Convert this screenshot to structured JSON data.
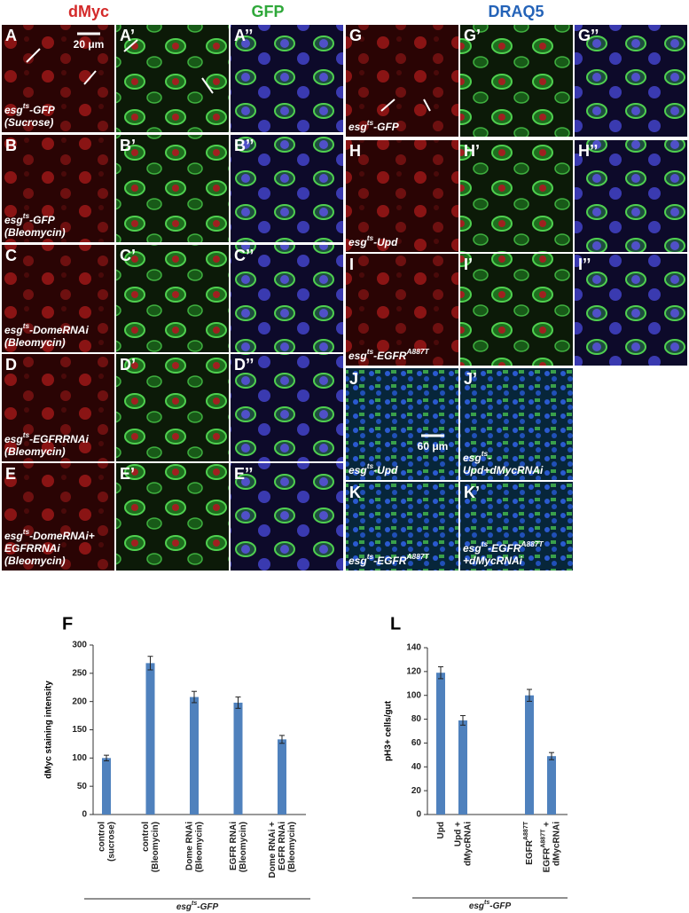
{
  "headers": [
    "dMyc",
    "GFP",
    "DRAQ5"
  ],
  "panels": [
    {
      "label": "A",
      "scale_bar": "20 μm",
      "caption": [
        [
          "esg",
          "ts",
          "-GFP"
        ],
        [
          "(Sucrose)"
        ]
      ]
    },
    {
      "label": "A’"
    },
    {
      "label": "A’’"
    },
    {
      "label": "B",
      "caption": [
        [
          "esg",
          "ts",
          "-GFP"
        ],
        [
          "(Bleomycin)"
        ]
      ]
    },
    {
      "label": "B’"
    },
    {
      "label": "B’’"
    },
    {
      "label": "C",
      "caption": [
        [
          "esg",
          "ts",
          "-DomeRNAi"
        ],
        [
          "(Bleomycin)"
        ]
      ]
    },
    {
      "label": "C’"
    },
    {
      "label": "C’’"
    },
    {
      "label": "D",
      "caption": [
        [
          "esg",
          "ts",
          "-EGFRRNAi"
        ],
        [
          "(Bleomycin)"
        ]
      ]
    },
    {
      "label": "D’"
    },
    {
      "label": "D’’"
    },
    {
      "label": "E",
      "caption": [
        [
          "esg",
          "ts",
          "-DomeRNAi+"
        ],
        [
          "EGFRRNAi"
        ],
        [
          "(Bleomycin)"
        ]
      ]
    },
    {
      "label": "E’"
    },
    {
      "label": "E’’"
    },
    {
      "label": "G",
      "caption": [
        [
          "esg",
          "ts",
          "-GFP"
        ]
      ]
    },
    {
      "label": "G’"
    },
    {
      "label": "G’’"
    },
    {
      "label": "H",
      "caption": [
        [
          "esg",
          "ts",
          "-Upd"
        ]
      ]
    },
    {
      "label": "H’"
    },
    {
      "label": "H’’"
    },
    {
      "label": "I",
      "caption": [
        [
          "esg",
          "ts",
          "-EGFR",
          "A887T"
        ]
      ]
    },
    {
      "label": "I’"
    },
    {
      "label": "I’’"
    },
    {
      "label": "J",
      "scale_bar": "60 μm",
      "caption": [
        [
          "esg",
          "ts",
          "-Upd"
        ]
      ]
    },
    {
      "label": "J’",
      "caption": [
        [
          "esg",
          "ts",
          "-"
        ],
        [
          "Upd+dMycRNAi"
        ]
      ]
    },
    {
      "label": "K",
      "caption": [
        [
          "esg",
          "ts",
          "-EGFR",
          "A887T"
        ]
      ]
    },
    {
      "label": "K’",
      "caption": [
        [
          "esg",
          "ts",
          "-EGFR",
          "A887T"
        ],
        [
          "+dMycRNAi"
        ]
      ]
    }
  ],
  "chart_data": [
    {
      "type": "bar",
      "panel": "F",
      "ylabel": "dMyc staining intensity",
      "categories": [
        [
          [
            "control"
          ],
          [
            "(sucrose)"
          ]
        ],
        [
          [
            "control"
          ],
          [
            "(Bleomycin)"
          ]
        ],
        [
          [
            "Dome RNAi"
          ],
          [
            "(Bleomycin)"
          ]
        ],
        [
          [
            "EGFR RNAi"
          ],
          [
            "(Bleomycin)"
          ]
        ],
        [
          [
            "Dome RNAi +"
          ],
          [
            "EGFR RNAi"
          ],
          [
            "(Bleomycin)"
          ]
        ]
      ],
      "values": [
        100,
        268,
        208,
        198,
        133
      ],
      "errors": [
        5,
        12,
        10,
        10,
        7
      ],
      "color": "#4f81bd",
      "ylim": [
        0,
        300
      ],
      "yticks": [
        0,
        50,
        100,
        150,
        200,
        250,
        300
      ],
      "group_label": [
        [
          "esg",
          "ts",
          "-GFP"
        ]
      ]
    },
    {
      "type": "bar",
      "panel": "L",
      "ylabel": "pH3+ cells/gut",
      "categories": [
        [
          [
            "Upd"
          ]
        ],
        [
          [
            "Upd +"
          ],
          [
            "dMycRNAi"
          ]
        ],
        null,
        null,
        [
          [
            "EGFR",
            "A887T"
          ]
        ],
        [
          [
            "EGFR",
            "A887T",
            " +"
          ],
          [
            "dMycRNAi"
          ]
        ]
      ],
      "values": [
        119,
        79,
        null,
        null,
        100,
        49
      ],
      "errors": [
        5,
        4,
        null,
        null,
        5,
        3
      ],
      "color": "#4f81bd",
      "ylim": [
        0,
        140
      ],
      "yticks": [
        0,
        20,
        40,
        60,
        80,
        100,
        120,
        140
      ],
      "group_label": [
        [
          "esg",
          "ts",
          "-GFP"
        ]
      ]
    }
  ]
}
